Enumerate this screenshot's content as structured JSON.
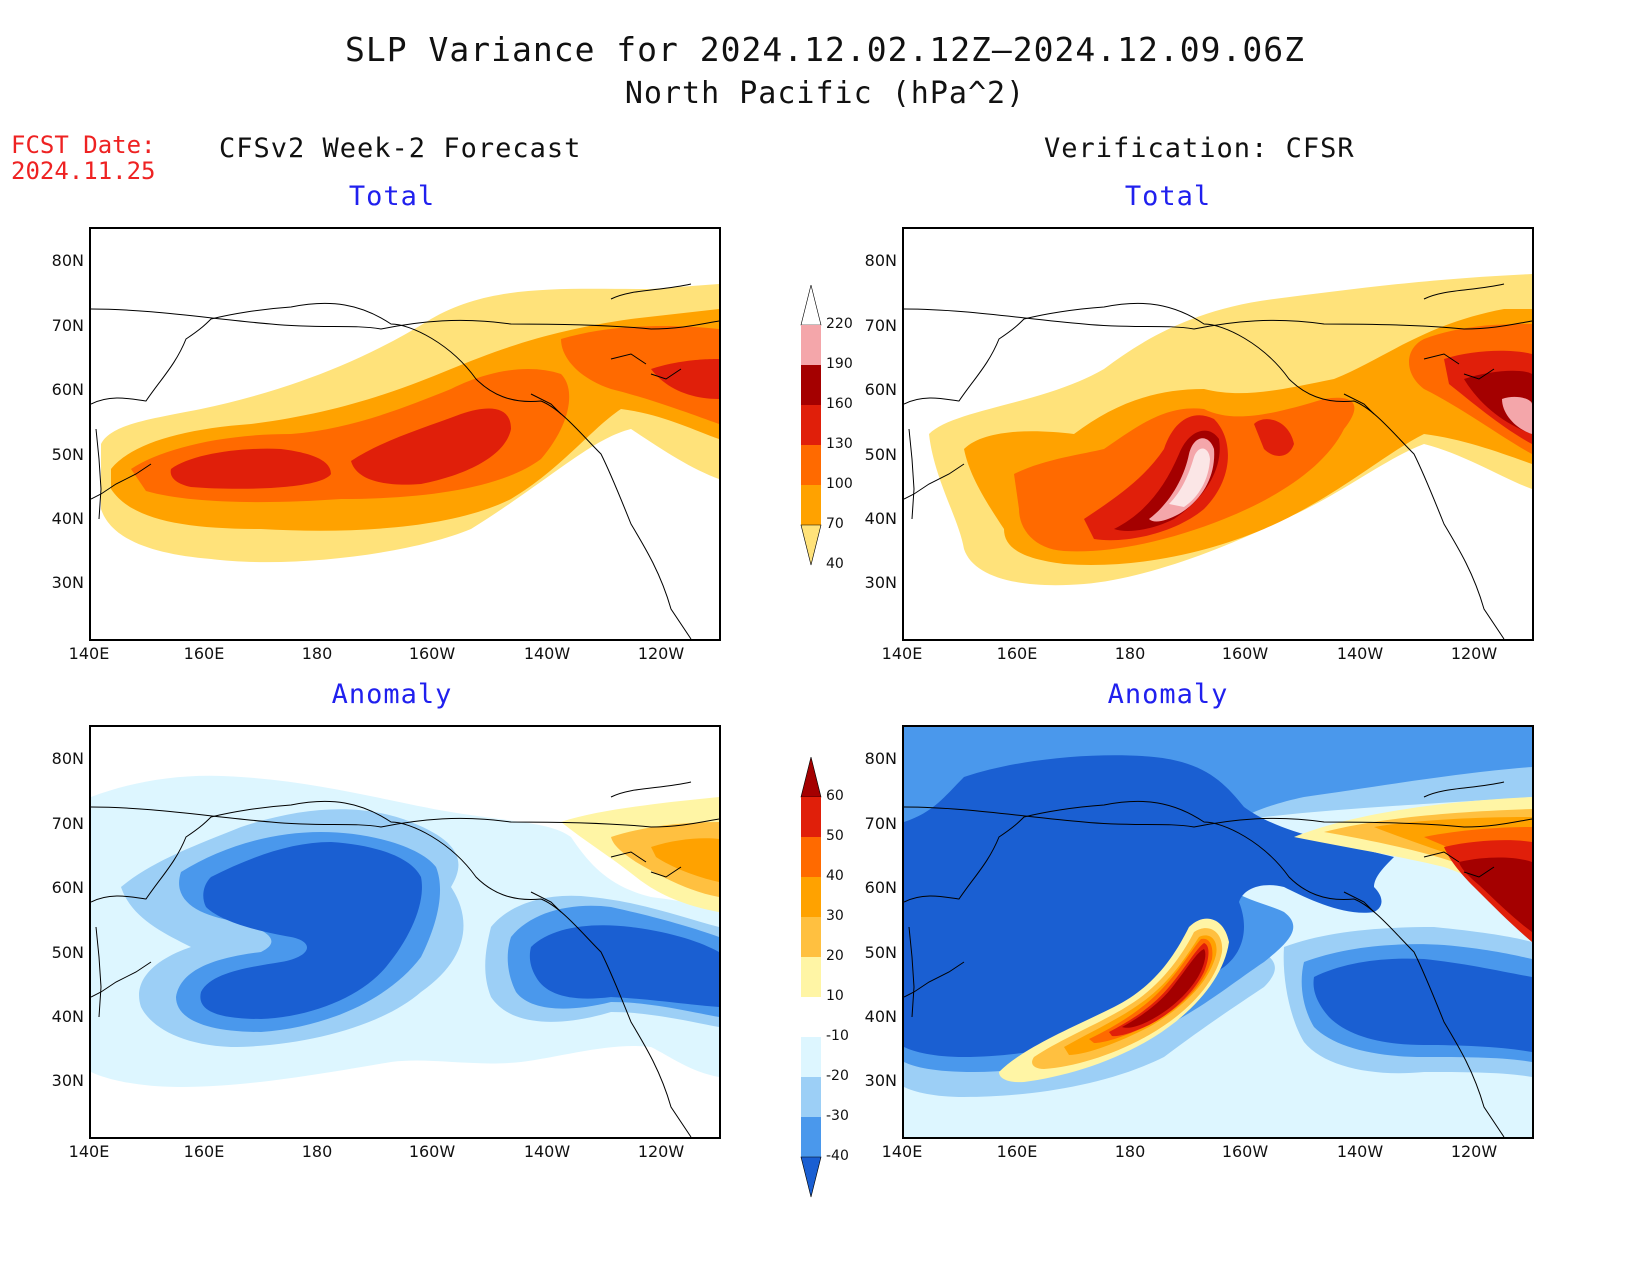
{
  "title_line1": "SLP Variance for 2024.12.02.12Z–2024.12.09.06Z",
  "title_line2": "North Pacific (hPa^2)",
  "fcst_label": "FCST Date:",
  "fcst_date": "2024.11.25",
  "left_column_title": "CFSv2 Week-2 Forecast",
  "right_column_title": "Verification: CFSR",
  "panel_titles": {
    "forecast_total": "Total",
    "verification_total": "Total",
    "forecast_anomaly": "Anomaly",
    "verification_anomaly": "Anomaly"
  },
  "lat_labels": [
    "80N",
    "70N",
    "60N",
    "50N",
    "40N",
    "30N"
  ],
  "lon_labels": [
    "140E",
    "160E",
    "180",
    "160W",
    "140W",
    "120W"
  ],
  "total_colorbar": {
    "levels": [
      "220",
      "190",
      "160",
      "130",
      "100",
      "70",
      "40"
    ],
    "colors": [
      "#ffffff",
      "#f4a6aa",
      "#a40000",
      "#e01f0a",
      "#ff6a00",
      "#ffa200",
      "#ffe27a"
    ]
  },
  "anomaly_colorbar": {
    "levels": [
      "60",
      "50",
      "40",
      "30",
      "20",
      "10",
      "-10",
      "-20",
      "-30",
      "-40"
    ],
    "colors": [
      "#a40000",
      "#e01f0a",
      "#ff6a00",
      "#ffa200",
      "#ffc040",
      "#fff5a5",
      "#ffffff",
      "#ddf6ff",
      "#9ccff6",
      "#4a98ec",
      "#1a5fd2"
    ]
  },
  "map_colors": {
    "total_40": "#ffe27a",
    "total_70": "#ffa200",
    "total_100": "#ff6a00",
    "total_130": "#e01f0a",
    "total_160": "#a40000",
    "total_190": "#f4a6aa",
    "total_220": "#fbe6e6",
    "anom_neg10": "#ddf6ff",
    "anom_neg20": "#9ccff6",
    "anom_neg30": "#4a98ec",
    "anom_neg40": "#1a5fd2",
    "anom_10": "#fff5a5",
    "anom_20": "#ffc040",
    "anom_30": "#ffa200",
    "anom_40": "#ff6a00",
    "anom_50": "#e01f0a",
    "anom_60": "#a40000"
  }
}
